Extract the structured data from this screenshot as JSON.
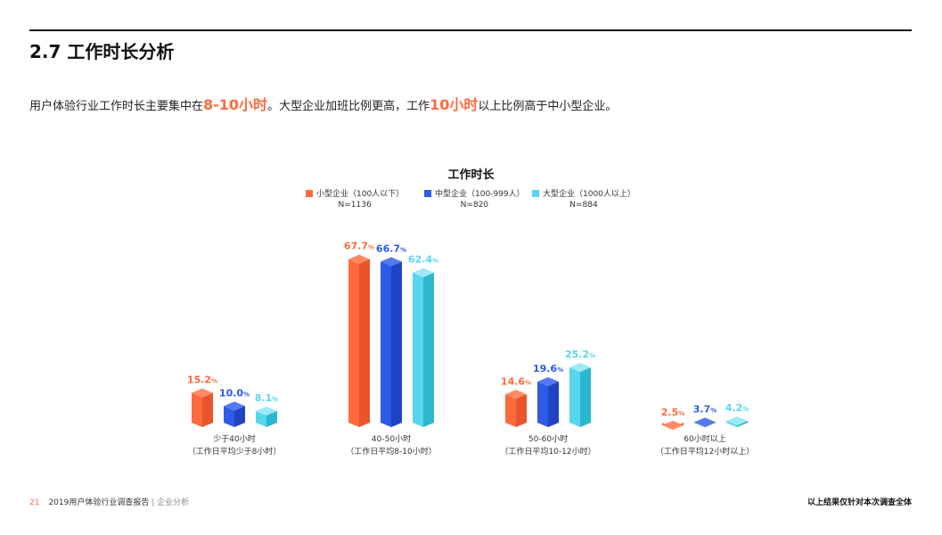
{
  "page": {
    "title": "2.7 工作时长分析",
    "summary": {
      "part1": "用户体验行业工作时长主要集中在",
      "hl1": "8-10小时",
      "part2": "。大型企业加班比例更高，工作",
      "hl2": "10小时",
      "part3": "以上比例高于中小型企业。"
    },
    "footer": {
      "page_number": "21",
      "report_name": "2019用户体验行业调查报告",
      "separator": "|",
      "section": "企业分析",
      "note": "以上结果仅针对本次调查全体"
    }
  },
  "chart_data": {
    "type": "bar",
    "title": "工作时长",
    "categories": [
      [
        "少于40小时",
        "（工作日平均少于8小时）"
      ],
      [
        "40-50小时",
        "（工作日平均8-10小时）"
      ],
      [
        "50-60小时",
        "（工作日平均10-12小时）"
      ],
      [
        "60小时以上",
        "（工作日平均12小时以上）"
      ]
    ],
    "series": [
      {
        "name": "小型企业（100人以下）",
        "n": "N=1136",
        "color": "#ff6a3d",
        "side": "#e9542a",
        "top": "#ff8a63",
        "label_color": "#ff6a3d",
        "values": [
          15.2,
          67.7,
          14.6,
          2.5
        ]
      },
      {
        "name": "中型企业（100-999人）",
        "n": "N=820",
        "color": "#2e5ae8",
        "side": "#1f43c4",
        "top": "#5479f0",
        "label_color": "#2e5ae8",
        "values": [
          10.0,
          66.7,
          19.6,
          3.7
        ]
      },
      {
        "name": "大型企业（1000人以上）",
        "n": "N=884",
        "color": "#56d6ef",
        "side": "#2bb7cf",
        "top": "#9eeaf7",
        "label_color": "#56d6ef",
        "values": [
          8.1,
          62.4,
          25.2,
          4.2
        ]
      }
    ],
    "unit": "%",
    "ylim": [
      0,
      70
    ],
    "legend_position": "top-center"
  }
}
